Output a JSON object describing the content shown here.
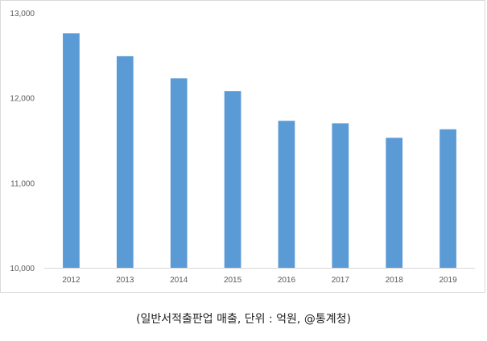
{
  "chart_data": {
    "type": "bar",
    "categories": [
      "2012",
      "2013",
      "2014",
      "2015",
      "2016",
      "2017",
      "2018",
      "2019"
    ],
    "values": [
      12760,
      12490,
      12230,
      12080,
      11730,
      11700,
      11530,
      11630
    ],
    "ylim": [
      10000,
      13000
    ],
    "yticks": [
      10000,
      11000,
      12000,
      13000
    ],
    "ytick_labels": [
      "10,000",
      "11,000",
      "12,000",
      "13,000"
    ],
    "grid": false,
    "bar_color": "#5b9bd5",
    "title": "",
    "xlabel": "",
    "ylabel": ""
  },
  "caption": "(일반서적출판업 매출, 단위 : 억원, @통계청)"
}
